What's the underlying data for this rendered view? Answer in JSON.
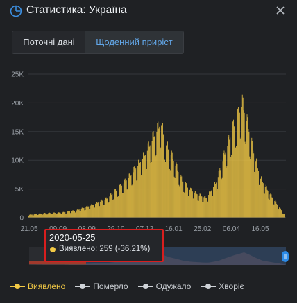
{
  "header": {
    "title": "Статистика: Україна"
  },
  "tabs": [
    {
      "label": "Поточні дані"
    },
    {
      "label": "Щоденний приріст"
    }
  ],
  "tooltip": {
    "date": "2020-05-25",
    "text": "Виявлено: 259 (-36.21%)",
    "color": "#f2c945"
  },
  "legend": [
    {
      "label": "Виявлено",
      "color": "#f2c945",
      "text_color": "#f2c945"
    },
    {
      "label": "Померло",
      "color": "#cfd3d8",
      "text_color": "#c9cdd2"
    },
    {
      "label": "Одужало",
      "color": "#cfd3d8",
      "text_color": "#c9cdd2"
    },
    {
      "label": "Хворіє",
      "color": "#cfd3d8",
      "text_color": "#c9cdd2"
    }
  ],
  "colors": {
    "bar": "#f2c945",
    "accent": "#63a8ea",
    "highlight": "#d81e1e"
  },
  "chart_data": {
    "type": "bar",
    "series": [
      {
        "name": "Виявлено"
      }
    ],
    "ylim": [
      0,
      25000
    ],
    "yticks": [
      "0",
      "5K",
      "10K",
      "15K",
      "20K",
      "25K"
    ],
    "x_tick_labels": [
      "21.05",
      "09.09",
      "08.09",
      "29.10",
      "07.12",
      "16.01",
      "25.02",
      "06.04",
      "16.05"
    ],
    "points": [
      [
        "2020-05-21",
        500
      ],
      [
        "2020-06-15",
        800
      ],
      [
        "2020-07-10",
        900
      ],
      [
        "2020-08-01",
        1300
      ],
      [
        "2020-08-25",
        2300
      ],
      [
        "2020-09-15",
        3400
      ],
      [
        "2020-10-05",
        5500
      ],
      [
        "2020-10-20",
        7500
      ],
      [
        "2020-11-01",
        9500
      ],
      [
        "2020-11-12",
        11500
      ],
      [
        "2020-11-22",
        14000
      ],
      [
        "2020-12-01",
        16000
      ],
      [
        "2020-12-04",
        17000
      ],
      [
        "2020-12-12",
        13000
      ],
      [
        "2020-12-22",
        10500
      ],
      [
        "2021-01-05",
        6500
      ],
      [
        "2021-01-16",
        5000
      ],
      [
        "2021-01-30",
        4000
      ],
      [
        "2021-02-10",
        3500
      ],
      [
        "2021-02-25",
        6500
      ],
      [
        "2021-03-08",
        11000
      ],
      [
        "2021-03-20",
        15500
      ],
      [
        "2021-03-30",
        18500
      ],
      [
        "2021-04-04",
        20200
      ],
      [
        "2021-04-12",
        16500
      ],
      [
        "2021-04-20",
        12000
      ],
      [
        "2021-05-01",
        7000
      ],
      [
        "2021-05-16",
        4000
      ],
      [
        "2021-05-28",
        2000
      ],
      [
        "2021-06-05",
        700
      ]
    ]
  }
}
